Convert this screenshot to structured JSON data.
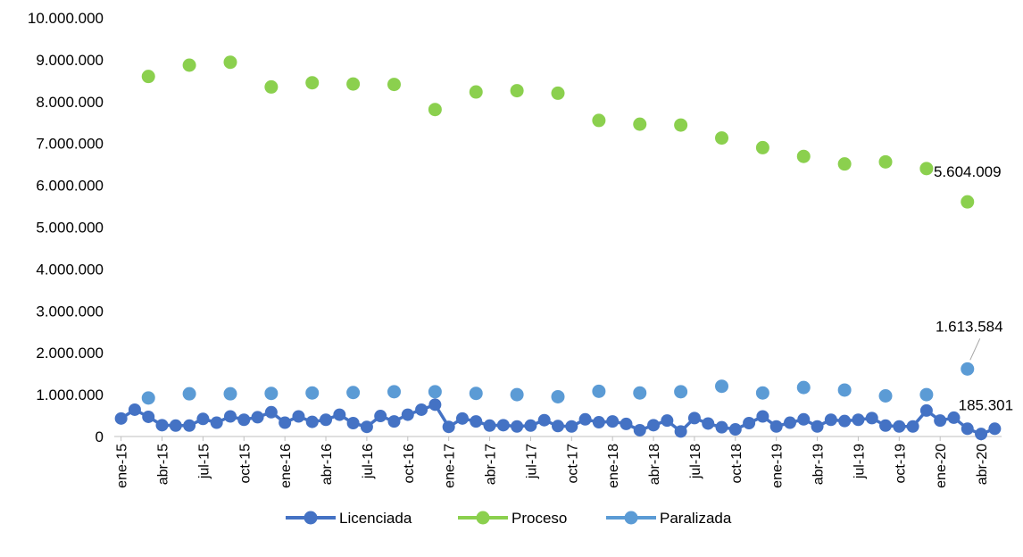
{
  "chart_data": {
    "type": "line",
    "title": "",
    "xlabel": "",
    "ylabel": "",
    "ylim": [
      0,
      10000000
    ],
    "y_ticks": [
      "0",
      "1.000.000",
      "2.000.000",
      "3.000.000",
      "4.000.000",
      "5.000.000",
      "6.000.000",
      "7.000.000",
      "8.000.000",
      "9.000.000",
      "10.000.000"
    ],
    "x_tick_labels": [
      "ene-15",
      "abr-15",
      "jul-15",
      "oct-15",
      "ene-16",
      "abr-16",
      "jul-16",
      "oct-16",
      "ene-17",
      "abr-17",
      "jul-17",
      "oct-17",
      "ene-18",
      "abr-18",
      "jul-18",
      "oct-18",
      "ene-19",
      "abr-19",
      "jul-19",
      "oct-19",
      "ene-20",
      "abr-20"
    ],
    "grid": false,
    "legend_position": "bottom",
    "colors": {
      "Licenciada": "#4472C4",
      "Proceso": "#8BD04E",
      "Paralizada": "#5B9BD5"
    },
    "series": [
      {
        "name": "Licenciada",
        "style": "line-markers",
        "values": [
          430000,
          640000,
          470000,
          270000,
          260000,
          260000,
          420000,
          330000,
          480000,
          400000,
          460000,
          580000,
          330000,
          480000,
          350000,
          400000,
          520000,
          320000,
          230000,
          490000,
          360000,
          520000,
          640000,
          760000,
          230000,
          430000,
          360000,
          260000,
          270000,
          240000,
          260000,
          390000,
          250000,
          240000,
          410000,
          340000,
          360000,
          300000,
          150000,
          270000,
          380000,
          120000,
          440000,
          310000,
          220000,
          170000,
          320000,
          480000,
          240000,
          330000,
          410000,
          240000,
          400000,
          370000,
          400000,
          440000,
          260000,
          240000,
          240000,
          620000,
          380000,
          450000,
          185301,
          60000,
          185301
        ]
      },
      {
        "name": "Proceso",
        "style": "markers",
        "points": [
          [
            2,
            8600000
          ],
          [
            5,
            8870000
          ],
          [
            8,
            8940000
          ],
          [
            11,
            8350000
          ],
          [
            14,
            8450000
          ],
          [
            17,
            8420000
          ],
          [
            20,
            8410000
          ],
          [
            23,
            7810000
          ],
          [
            26,
            8230000
          ],
          [
            29,
            8260000
          ],
          [
            32,
            8200000
          ],
          [
            35,
            7550000
          ],
          [
            38,
            7460000
          ],
          [
            41,
            7440000
          ],
          [
            44,
            7130000
          ],
          [
            47,
            6900000
          ],
          [
            50,
            6690000
          ],
          [
            53,
            6510000
          ],
          [
            56,
            6560000
          ],
          [
            59,
            6400000
          ],
          [
            62,
            5604009
          ]
        ]
      },
      {
        "name": "Paralizada",
        "style": "markers",
        "points": [
          [
            2,
            920000
          ],
          [
            5,
            1020000
          ],
          [
            8,
            1020000
          ],
          [
            11,
            1030000
          ],
          [
            14,
            1040000
          ],
          [
            17,
            1050000
          ],
          [
            20,
            1070000
          ],
          [
            23,
            1070000
          ],
          [
            26,
            1030000
          ],
          [
            29,
            1000000
          ],
          [
            32,
            950000
          ],
          [
            35,
            1080000
          ],
          [
            38,
            1040000
          ],
          [
            41,
            1070000
          ],
          [
            44,
            1200000
          ],
          [
            47,
            1040000
          ],
          [
            50,
            1170000
          ],
          [
            53,
            1110000
          ],
          [
            56,
            970000
          ],
          [
            59,
            1000000
          ],
          [
            62,
            1613584
          ]
        ]
      }
    ],
    "annotations": [
      {
        "series": "Proceso",
        "index": 62,
        "text": "5.604.009"
      },
      {
        "series": "Paralizada",
        "index": 62,
        "text": "1.613.584"
      },
      {
        "series": "Licenciada",
        "index": 64,
        "text": "185.301"
      }
    ]
  }
}
